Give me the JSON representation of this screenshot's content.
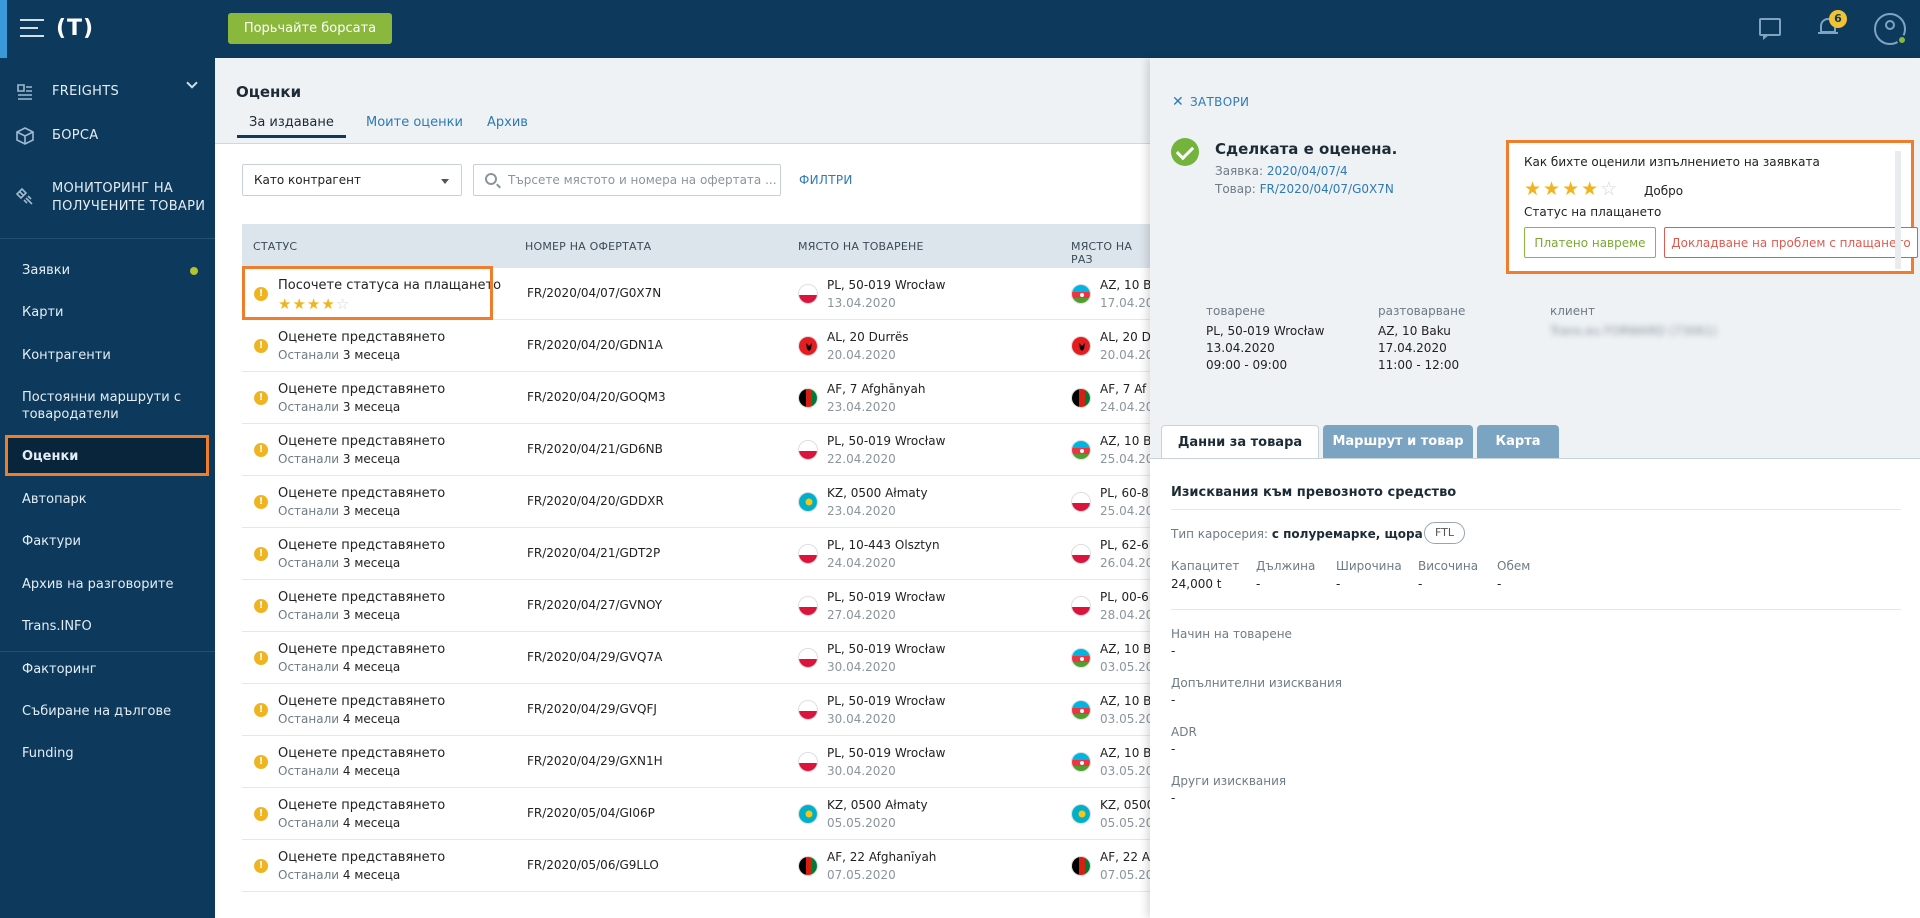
{
  "topbar": {
    "logo_text": "(T)",
    "exchange_button": "Порьчайте борсата",
    "notification_count": "6"
  },
  "sidebar": {
    "main": [
      {
        "label": "FREIGHTS",
        "icon": "freight-icon"
      },
      {
        "label": "БОРСА",
        "icon": "cube-icon"
      },
      {
        "label": "МОНИТОРИНГ НА ПОЛУЧЕНИТЕ ТОВАРИ",
        "icon": "satellite-icon"
      }
    ],
    "items": [
      {
        "label": "Заявки",
        "dot": true
      },
      {
        "label": "Карти"
      },
      {
        "label": "Контрагенти"
      },
      {
        "label": "Постоянни маршрути с товародатели"
      },
      {
        "label": "Оценки",
        "active": true
      },
      {
        "label": "Автопарк"
      },
      {
        "label": "Фактури"
      },
      {
        "label": "Архив на разговорите"
      },
      {
        "label": "Trans.INFO"
      },
      {
        "label": "Факторинг"
      },
      {
        "label": "Събиране на дългове"
      },
      {
        "label": "Funding"
      }
    ]
  },
  "main": {
    "title": "Оценки",
    "tabs": [
      "За издаване",
      "Моите оценки",
      "Архив"
    ],
    "select_value": "Като контрагент",
    "search_placeholder": "Търсете мястото и номера на офертата ...",
    "filters": "ФИЛТРИ",
    "columns": [
      "СТАТУС",
      "НОМЕР НА ОФЕРТАТА",
      "МЯСТО НА ТОВАРЕНЕ",
      "МЯСТО НА РАЗ"
    ],
    "rows": [
      {
        "status": "Посочете статуса на плащането",
        "rating": 4,
        "number": "FR/2020/04/07/G0X7N",
        "load_flag": "pl",
        "load_place": "PL, 50-019 Wrocław",
        "load_date": "13.04.2020",
        "unload_flag": "az",
        "unload_place": "AZ, 10 B",
        "unload_date": "17.04.20"
      },
      {
        "status": "Оценете представянето",
        "sub_a": "Останали",
        "sub_b": "3 месеца",
        "number": "FR/2020/04/20/GDN1A",
        "load_flag": "al",
        "load_place": "AL, 20 Durrës",
        "load_date": "20.04.2020",
        "unload_flag": "al",
        "unload_place": "AL, 20 D",
        "unload_date": "20.04.20"
      },
      {
        "status": "Оценете представянето",
        "sub_a": "Останали",
        "sub_b": "3 месеца",
        "number": "FR/2020/04/20/GOQM3",
        "load_flag": "af",
        "load_place": "AF, 7 Afghānyah",
        "load_date": "23.04.2020",
        "unload_flag": "af",
        "unload_place": "AF, 7 Af",
        "unload_date": "24.04.20"
      },
      {
        "status": "Оценете представянето",
        "sub_a": "Останали",
        "sub_b": "3 месеца",
        "number": "FR/2020/04/21/GD6NB",
        "load_flag": "pl",
        "load_place": "PL, 50-019 Wrocław",
        "load_date": "22.04.2020",
        "unload_flag": "az",
        "unload_place": "AZ, 10 B",
        "unload_date": "25.04.20"
      },
      {
        "status": "Оценете представянето",
        "sub_a": "Останали",
        "sub_b": "3 месеца",
        "number": "FR/2020/04/20/GDDXR",
        "load_flag": "kz",
        "load_place": "KZ, 0500 Ałmaty",
        "load_date": "23.04.2020",
        "unload_flag": "pl",
        "unload_place": "PL, 60-8",
        "unload_date": "25.04.20"
      },
      {
        "status": "Оценете представянето",
        "sub_a": "Останали",
        "sub_b": "3 месеца",
        "number": "FR/2020/04/21/GDT2P",
        "load_flag": "pl",
        "load_place": "PL, 10-443 Olsztyn",
        "load_date": "24.04.2020",
        "unload_flag": "pl",
        "unload_place": "PL, 62-6",
        "unload_date": "26.04.20"
      },
      {
        "status": "Оценете представянето",
        "sub_a": "Останали",
        "sub_b": "3 месеца",
        "number": "FR/2020/04/27/GVNOY",
        "load_flag": "pl",
        "load_place": "PL, 50-019 Wrocław",
        "load_date": "27.04.2020",
        "unload_flag": "pl",
        "unload_place": "PL, 00-6",
        "unload_date": "28.04.20"
      },
      {
        "status": "Оценете представянето",
        "sub_a": "Останали",
        "sub_b": "4 месеца",
        "number": "FR/2020/04/29/GVQ7A",
        "load_flag": "pl",
        "load_place": "PL, 50-019 Wrocław",
        "load_date": "30.04.2020",
        "unload_flag": "az",
        "unload_place": "AZ, 10 B",
        "unload_date": "03.05.20"
      },
      {
        "status": "Оценете представянето",
        "sub_a": "Останали",
        "sub_b": "4 месеца",
        "number": "FR/2020/04/29/GVQFJ",
        "load_flag": "pl",
        "load_place": "PL, 50-019 Wrocław",
        "load_date": "30.04.2020",
        "unload_flag": "az",
        "unload_place": "AZ, 10 B",
        "unload_date": "03.05.20"
      },
      {
        "status": "Оценете представянето",
        "sub_a": "Останали",
        "sub_b": "4 месеца",
        "number": "FR/2020/04/29/GXN1H",
        "load_flag": "pl",
        "load_place": "PL, 50-019 Wrocław",
        "load_date": "30.04.2020",
        "unload_flag": "az",
        "unload_place": "AZ, 10 B",
        "unload_date": "03.05.20"
      },
      {
        "status": "Оценете представянето",
        "sub_a": "Останали",
        "sub_b": "4 месеца",
        "number": "FR/2020/05/04/GI06P",
        "load_flag": "kz",
        "load_place": "KZ, 0500 Ałmaty",
        "load_date": "05.05.2020",
        "unload_flag": "kz",
        "unload_place": "KZ, 0500",
        "unload_date": "05.05.20"
      },
      {
        "status": "Оценете представянето",
        "sub_a": "Останали",
        "sub_b": "4 месеца",
        "number": "FR/2020/05/06/G9LLO",
        "load_flag": "af",
        "load_place": "AF, 22 Afghanīyah",
        "load_date": "07.05.2020",
        "unload_flag": "af",
        "unload_place": "AF, 22 A",
        "unload_date": "07.05.20"
      }
    ]
  },
  "panel": {
    "close": "ЗАТВОРИ",
    "deal_title": "Сделката е оценена.",
    "order_label": "Заявка:",
    "order_value": "2020/04/07/4",
    "goods_label": "Товар:",
    "goods_value": "FR/2020/04/07/G0X7N",
    "rate_question": "Как бихте оценили изпълнението на заявката",
    "rating": 4,
    "rating_word": "Добро",
    "payment_status_label": "Статус на плащането",
    "paid_on_time": "Платено навреме",
    "report_problem": "Докладване на проблем с плащането",
    "loading_h": "товарене",
    "loading_place": "PL, 50-019 Wrocław",
    "loading_date": "13.04.2020",
    "loading_time": "09:00 - 09:00",
    "unloading_h": "разтоварване",
    "unloading_place": "AZ, 10 Baku",
    "unloading_date": "17.04.2020",
    "unloading_time": "11:00 - 12:00",
    "client_h": "клиент",
    "client_value": "Trans.eu FORWARD (73061)",
    "tabs": [
      "Данни за товара",
      "Маршрут и товар",
      "Карта"
    ],
    "section_title": "Изисквания към превозното средство",
    "body_type_label": "Тип каросерия:",
    "body_type_value": "с полуремарке, щора",
    "ftl": "FTL",
    "dims": [
      {
        "h": "Капацитет",
        "v": "24,000 t"
      },
      {
        "h": "Дължина",
        "v": "-"
      },
      {
        "h": "Широчина",
        "v": "-"
      },
      {
        "h": "Височина",
        "v": "-"
      },
      {
        "h": "Обем",
        "v": "-"
      }
    ],
    "requirements": [
      {
        "h": "Начин на товарене",
        "v": "-"
      },
      {
        "h": "Допълнителни изисквания",
        "v": "-"
      },
      {
        "h": "ADR",
        "v": "-"
      },
      {
        "h": "Други изисквания",
        "v": "-"
      }
    ]
  }
}
